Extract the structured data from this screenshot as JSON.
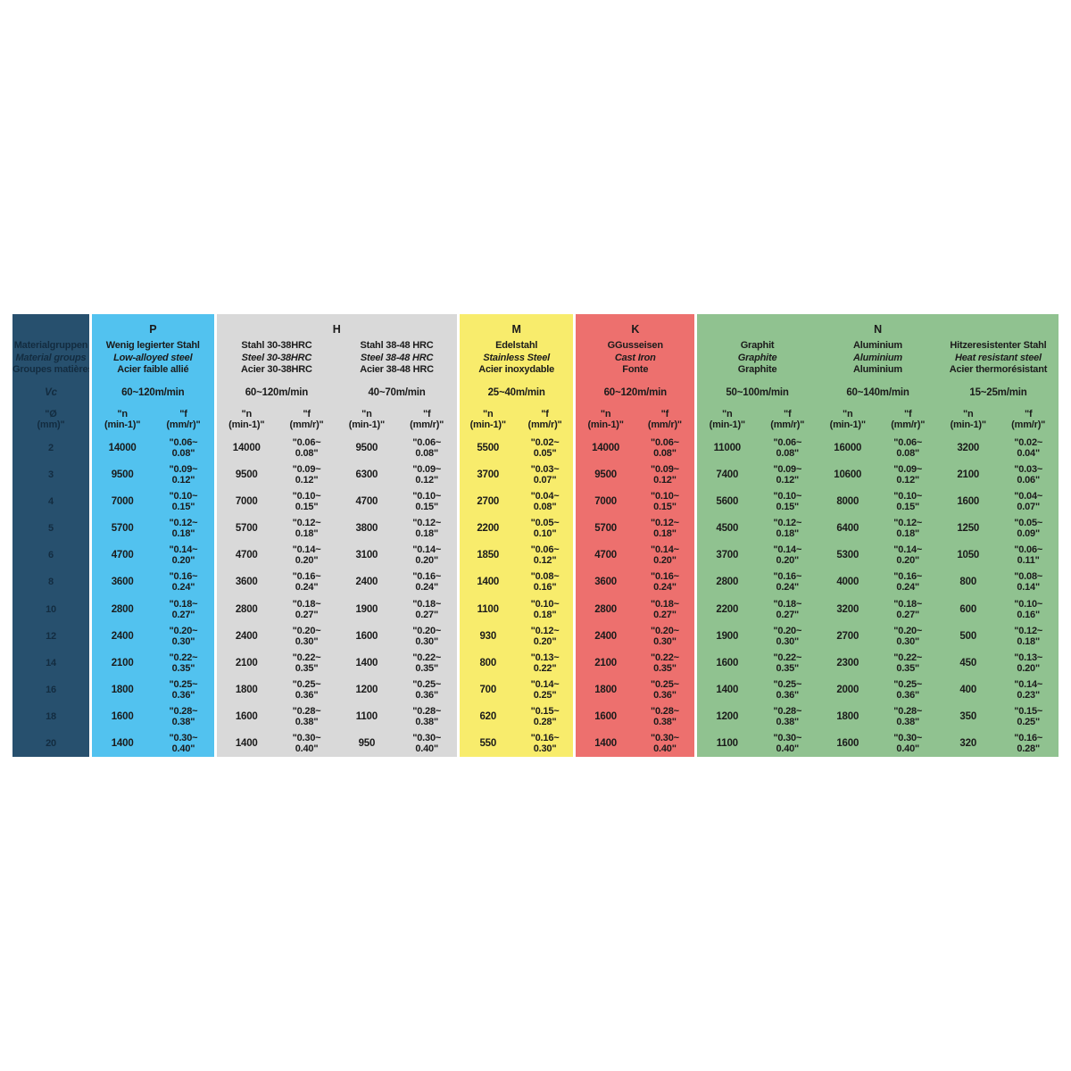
{
  "colors": {
    "page_bg": "#ffffff",
    "left_bg": "#27506e",
    "left_text": "#132c40",
    "p_bg": "#52c2ef",
    "h_bg": "#d9d9d9",
    "m_bg": "#f8ec6c",
    "k_bg": "#ed706e",
    "n_bg": "#90c290",
    "text": "#1b1b1b",
    "separator": "#ffffff"
  },
  "left_column": {
    "title_lines": [
      "Materialgruppen",
      "Material groups",
      "Groupes matières"
    ],
    "vc_label": "Vc",
    "diameter_header": "\"Ø\n(mm)\"",
    "row_labels": [
      "2",
      "3",
      "4",
      "5",
      "6",
      "8",
      "10",
      "12",
      "14",
      "16",
      "18",
      "20"
    ]
  },
  "column_headers": {
    "n": "\"n\n(min-1)\"",
    "f": "\"f\n(mm/r)\""
  },
  "groups": [
    {
      "letter": "P",
      "bg": "#52c2ef",
      "columns": [
        {
          "material_lines": [
            "Wenig legierter Stahl",
            "Low-alloyed steel",
            "Acier faible allié"
          ],
          "speed": "60~120m/min",
          "rows": [
            {
              "n": "14000",
              "f": "\"0.06~\n0.08\""
            },
            {
              "n": "9500",
              "f": "\"0.09~\n0.12\""
            },
            {
              "n": "7000",
              "f": "\"0.10~\n0.15\""
            },
            {
              "n": "5700",
              "f": "\"0.12~\n0.18\""
            },
            {
              "n": "4700",
              "f": "\"0.14~\n0.20\""
            },
            {
              "n": "3600",
              "f": "\"0.16~\n0.24\""
            },
            {
              "n": "2800",
              "f": "\"0.18~\n0.27\""
            },
            {
              "n": "2400",
              "f": "\"0.20~\n0.30\""
            },
            {
              "n": "2100",
              "f": "\"0.22~\n0.35\""
            },
            {
              "n": "1800",
              "f": "\"0.25~\n0.36\""
            },
            {
              "n": "1600",
              "f": "\"0.28~\n0.38\""
            },
            {
              "n": "1400",
              "f": "\"0.30~\n0.40\""
            }
          ]
        }
      ]
    },
    {
      "letter": "H",
      "bg": "#d9d9d9",
      "columns": [
        {
          "material_lines": [
            "Stahl 30-38HRC",
            "Steel 30-38HRC",
            "Acier 30-38HRC"
          ],
          "speed": "60~120m/min",
          "rows": [
            {
              "n": "14000",
              "f": "\"0.06~\n0.08\""
            },
            {
              "n": "9500",
              "f": "\"0.09~\n0.12\""
            },
            {
              "n": "7000",
              "f": "\"0.10~\n0.15\""
            },
            {
              "n": "5700",
              "f": "\"0.12~\n0.18\""
            },
            {
              "n": "4700",
              "f": "\"0.14~\n0.20\""
            },
            {
              "n": "3600",
              "f": "\"0.16~\n0.24\""
            },
            {
              "n": "2800",
              "f": "\"0.18~\n0.27\""
            },
            {
              "n": "2400",
              "f": "\"0.20~\n0.30\""
            },
            {
              "n": "2100",
              "f": "\"0.22~\n0.35\""
            },
            {
              "n": "1800",
              "f": "\"0.25~\n0.36\""
            },
            {
              "n": "1600",
              "f": "\"0.28~\n0.38\""
            },
            {
              "n": "1400",
              "f": "\"0.30~\n0.40\""
            }
          ]
        },
        {
          "material_lines": [
            "Stahl 38-48 HRC",
            "Steel 38-48 HRC",
            "Acier 38-48 HRC"
          ],
          "speed": "40~70m/min",
          "rows": [
            {
              "n": "9500",
              "f": "\"0.06~\n0.08\""
            },
            {
              "n": "6300",
              "f": "\"0.09~\n0.12\""
            },
            {
              "n": "4700",
              "f": "\"0.10~\n0.15\""
            },
            {
              "n": "3800",
              "f": "\"0.12~\n0.18\""
            },
            {
              "n": "3100",
              "f": "\"0.14~\n0.20\""
            },
            {
              "n": "2400",
              "f": "\"0.16~\n0.24\""
            },
            {
              "n": "1900",
              "f": "\"0.18~\n0.27\""
            },
            {
              "n": "1600",
              "f": "\"0.20~\n0.30\""
            },
            {
              "n": "1400",
              "f": "\"0.22~\n0.35\""
            },
            {
              "n": "1200",
              "f": "\"0.25~\n0.36\""
            },
            {
              "n": "1100",
              "f": "\"0.28~\n0.38\""
            },
            {
              "n": "950",
              "f": "\"0.30~\n0.40\""
            }
          ]
        }
      ]
    },
    {
      "letter": "M",
      "bg": "#f8ec6c",
      "columns": [
        {
          "material_lines": [
            "Edelstahl",
            "Stainless Steel",
            "Acier inoxydable"
          ],
          "speed": "25~40m/min",
          "rows": [
            {
              "n": "5500",
              "f": "\"0.02~\n0.05\""
            },
            {
              "n": "3700",
              "f": "\"0.03~\n0.07\""
            },
            {
              "n": "2700",
              "f": "\"0.04~\n0.08\""
            },
            {
              "n": "2200",
              "f": "\"0.05~\n0.10\""
            },
            {
              "n": "1850",
              "f": "\"0.06~\n0.12\""
            },
            {
              "n": "1400",
              "f": "\"0.08~\n0.16\""
            },
            {
              "n": "1100",
              "f": "\"0.10~\n0.18\""
            },
            {
              "n": "930",
              "f": "\"0.12~\n0.20\""
            },
            {
              "n": "800",
              "f": "\"0.13~\n0.22\""
            },
            {
              "n": "700",
              "f": "\"0.14~\n0.25\""
            },
            {
              "n": "620",
              "f": "\"0.15~\n0.28\""
            },
            {
              "n": "550",
              "f": "\"0.16~\n0.30\""
            }
          ]
        }
      ]
    },
    {
      "letter": "K",
      "bg": "#ed706e",
      "columns": [
        {
          "material_lines": [
            "GGusseisen",
            "Cast Iron",
            "Fonte"
          ],
          "speed": "60~120m/min",
          "rows": [
            {
              "n": "14000",
              "f": "\"0.06~\n0.08\""
            },
            {
              "n": "9500",
              "f": "\"0.09~\n0.12\""
            },
            {
              "n": "7000",
              "f": "\"0.10~\n0.15\""
            },
            {
              "n": "5700",
              "f": "\"0.12~\n0.18\""
            },
            {
              "n": "4700",
              "f": "\"0.14~\n0.20\""
            },
            {
              "n": "3600",
              "f": "\"0.16~\n0.24\""
            },
            {
              "n": "2800",
              "f": "\"0.18~\n0.27\""
            },
            {
              "n": "2400",
              "f": "\"0.20~\n0.30\""
            },
            {
              "n": "2100",
              "f": "\"0.22~\n0.35\""
            },
            {
              "n": "1800",
              "f": "\"0.25~\n0.36\""
            },
            {
              "n": "1600",
              "f": "\"0.28~\n0.38\""
            },
            {
              "n": "1400",
              "f": "\"0.30~\n0.40\""
            }
          ]
        }
      ]
    },
    {
      "letter": "N",
      "bg": "#90c290",
      "columns": [
        {
          "material_lines": [
            "Graphit",
            "Graphite",
            "Graphite"
          ],
          "speed": "50~100m/min",
          "rows": [
            {
              "n": "11000",
              "f": "\"0.06~\n0.08\""
            },
            {
              "n": "7400",
              "f": "\"0.09~\n0.12\""
            },
            {
              "n": "5600",
              "f": "\"0.10~\n0.15\""
            },
            {
              "n": "4500",
              "f": "\"0.12~\n0.18\""
            },
            {
              "n": "3700",
              "f": "\"0.14~\n0.20\""
            },
            {
              "n": "2800",
              "f": "\"0.16~\n0.24\""
            },
            {
              "n": "2200",
              "f": "\"0.18~\n0.27\""
            },
            {
              "n": "1900",
              "f": "\"0.20~\n0.30\""
            },
            {
              "n": "1600",
              "f": "\"0.22~\n0.35\""
            },
            {
              "n": "1400",
              "f": "\"0.25~\n0.36\""
            },
            {
              "n": "1200",
              "f": "\"0.28~\n0.38\""
            },
            {
              "n": "1100",
              "f": "\"0.30~\n0.40\""
            }
          ]
        },
        {
          "material_lines": [
            "Aluminium",
            "Aluminium",
            "Aluminium"
          ],
          "speed": "60~140m/min",
          "rows": [
            {
              "n": "16000",
              "f": "\"0.06~\n0.08\""
            },
            {
              "n": "10600",
              "f": "\"0.09~\n0.12\""
            },
            {
              "n": "8000",
              "f": "\"0.10~\n0.15\""
            },
            {
              "n": "6400",
              "f": "\"0.12~\n0.18\""
            },
            {
              "n": "5300",
              "f": "\"0.14~\n0.20\""
            },
            {
              "n": "4000",
              "f": "\"0.16~\n0.24\""
            },
            {
              "n": "3200",
              "f": "\"0.18~\n0.27\""
            },
            {
              "n": "2700",
              "f": "\"0.20~\n0.30\""
            },
            {
              "n": "2300",
              "f": "\"0.22~\n0.35\""
            },
            {
              "n": "2000",
              "f": "\"0.25~\n0.36\""
            },
            {
              "n": "1800",
              "f": "\"0.28~\n0.38\""
            },
            {
              "n": "1600",
              "f": "\"0.30~\n0.40\""
            }
          ]
        },
        {
          "material_lines": [
            "Hitzeresistenter Stahl",
            "Heat resistant steel",
            "Acier thermorésistant"
          ],
          "speed": "15~25m/min",
          "rows": [
            {
              "n": "3200",
              "f": "\"0.02~\n0.04\""
            },
            {
              "n": "2100",
              "f": "\"0.03~\n0.06\""
            },
            {
              "n": "1600",
              "f": "\"0.04~\n0.07\""
            },
            {
              "n": "1250",
              "f": "\"0.05~\n0.09\""
            },
            {
              "n": "1050",
              "f": "\"0.06~\n0.11\""
            },
            {
              "n": "800",
              "f": "\"0.08~\n0.14\""
            },
            {
              "n": "600",
              "f": "\"0.10~\n0.16\""
            },
            {
              "n": "500",
              "f": "\"0.12~\n0.18\""
            },
            {
              "n": "450",
              "f": "\"0.13~\n0.20\""
            },
            {
              "n": "400",
              "f": "\"0.14~\n0.23\""
            },
            {
              "n": "350",
              "f": "\"0.15~\n0.25\""
            },
            {
              "n": "320",
              "f": "\"0.16~\n0.28\""
            }
          ]
        }
      ]
    }
  ]
}
